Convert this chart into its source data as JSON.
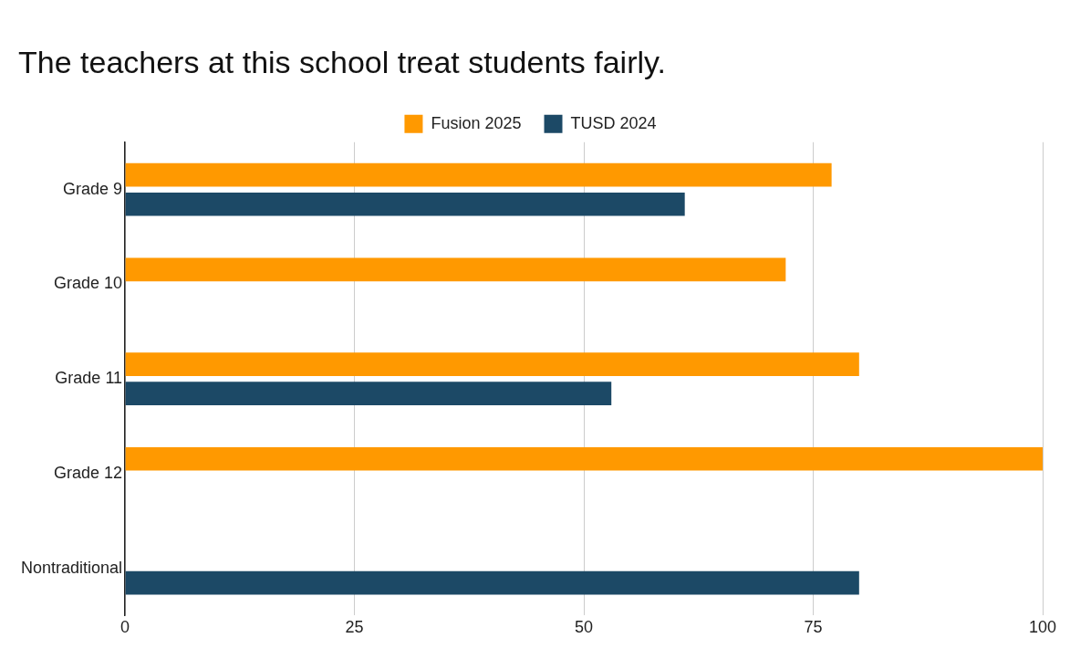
{
  "chart_data": {
    "type": "bar",
    "orientation": "horizontal",
    "title": "The teachers at this school treat students fairly.",
    "categories": [
      "Grade 9",
      "Grade 10",
      "Grade 11",
      "Grade 12",
      "Nontraditional"
    ],
    "series": [
      {
        "name": "Fusion 2025",
        "color": "#ff9900",
        "values": [
          77,
          72,
          80,
          100,
          null
        ]
      },
      {
        "name": "TUSD 2024",
        "color": "#1c4966",
        "values": [
          61,
          null,
          53,
          null,
          80
        ]
      }
    ],
    "xlim": [
      0,
      100
    ],
    "xticks": [
      0,
      25,
      50,
      75,
      100
    ],
    "grid": "x",
    "legend": "top"
  }
}
